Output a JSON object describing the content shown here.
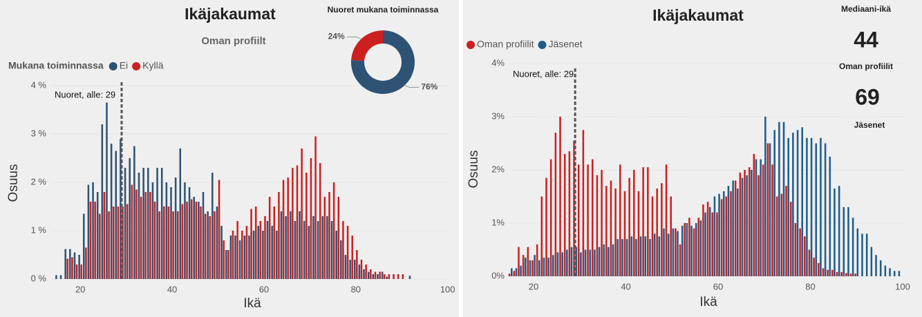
{
  "chart_data": [
    {
      "type": "histogram",
      "title": "Ikäjakaumat",
      "subtitle": "Oman profiilt",
      "legend_title": "Mukana toiminnassa",
      "xlabel": "Ikä",
      "ylabel": "Osuus",
      "xlim": [
        13.8,
        100.5
      ],
      "ylim": [
        0,
        4
      ],
      "xticks": [
        20,
        40,
        60,
        80,
        100
      ],
      "yticks": [
        {
          "value": 0,
          "label": "0 %"
        },
        {
          "value": 1,
          "label": "1 %"
        },
        {
          "value": 2,
          "label": "2 %"
        },
        {
          "value": 3,
          "label": "3 %"
        },
        {
          "value": 4,
          "label": "4 %"
        }
      ],
      "grid": true,
      "annotation": {
        "text": "Nuoret, alle: 29",
        "x": 29
      },
      "x": [
        15,
        16,
        17,
        18,
        19,
        20,
        21,
        22,
        23,
        24,
        25,
        26,
        27,
        28,
        29,
        30,
        31,
        32,
        33,
        34,
        35,
        36,
        37,
        38,
        39,
        40,
        41,
        42,
        43,
        44,
        45,
        46,
        47,
        48,
        49,
        50,
        51,
        52,
        53,
        54,
        55,
        56,
        57,
        58,
        59,
        60,
        61,
        62,
        63,
        64,
        65,
        66,
        67,
        68,
        69,
        70,
        71,
        72,
        73,
        74,
        75,
        76,
        77,
        78,
        79,
        80,
        81,
        82,
        83,
        84,
        85,
        86,
        87,
        88,
        89,
        90,
        91,
        92
      ],
      "series": [
        {
          "name": "Ei",
          "color": "#2e5274",
          "values": [
            0.08,
            0.08,
            0.62,
            0.62,
            0.55,
            0.5,
            1.35,
            1.95,
            2.0,
            1.8,
            3.2,
            3.65,
            2.8,
            2.65,
            2.9,
            2.3,
            2.5,
            2.75,
            2.2,
            2.3,
            2.3,
            2.0,
            2.3,
            2.3,
            2.0,
            1.9,
            2.1,
            2.7,
            2.0,
            1.9,
            1.7,
            1.6,
            1.8,
            1.4,
            2.2,
            1.5,
            1.1,
            0.6,
            0.9,
            0.9,
            0.8,
            0.9,
            0.9,
            1.0,
            1.1,
            1.0,
            1.2,
            1.1,
            1.0,
            1.4,
            1.3,
            1.4,
            1.2,
            1.4,
            1.2,
            1.1,
            1.3,
            1.2,
            1.3,
            1.3,
            1.2,
            1.0,
            0.8,
            0.5,
            0.4,
            0.4,
            0.3,
            0.2,
            0.15,
            0.1,
            0.1,
            0.15,
            0.05,
            0,
            0,
            0,
            0,
            0.07
          ]
        },
        {
          "name": "Kyllä",
          "color": "#cc1f1f",
          "values": [
            0,
            0,
            0.42,
            0.45,
            0.3,
            0.3,
            0.65,
            1.6,
            1.6,
            1.35,
            1.8,
            1.4,
            1.5,
            1.5,
            1.5,
            1.55,
            1.95,
            1.85,
            1.7,
            1.8,
            1.8,
            1.6,
            1.4,
            1.5,
            1.5,
            1.4,
            1.4,
            1.55,
            1.6,
            1.65,
            1.6,
            1.5,
            1.35,
            1.3,
            1.4,
            2.05,
            0.8,
            0.6,
            1.0,
            1.2,
            1.0,
            1.1,
            1.45,
            1.5,
            1.2,
            1.3,
            1.7,
            1.5,
            1.8,
            2.05,
            2.1,
            2.3,
            2.35,
            2.7,
            2.2,
            2.5,
            2.95,
            2.4,
            1.7,
            1.8,
            2.0,
            1.7,
            1.2,
            1.1,
            0.9,
            0.6,
            0.4,
            0.3,
            0.2,
            0.15,
            0.15,
            0.1,
            0.1,
            0.1,
            0.1,
            0.1,
            0,
            0
          ]
        }
      ]
    },
    {
      "type": "pie",
      "title": "Nuoret mukana toiminnassa",
      "values": [
        24,
        76
      ],
      "value_labels": [
        "24%",
        "76%"
      ],
      "colors": [
        "#cc1f1f",
        "#2e5274"
      ]
    },
    {
      "type": "histogram",
      "title": "Ikäjakaumat",
      "xlabel": "Ikä",
      "ylabel": "Osuus",
      "xlim": [
        14.9,
        100.6
      ],
      "ylim": [
        0,
        4
      ],
      "xticks": [
        20,
        40,
        60,
        80,
        100
      ],
      "yticks": [
        {
          "value": 0,
          "label": "0%"
        },
        {
          "value": 1,
          "label": "1%"
        },
        {
          "value": 2,
          "label": "2%"
        },
        {
          "value": 3,
          "label": "3%"
        },
        {
          "value": 4,
          "label": "4%"
        }
      ],
      "grid": true,
      "annotation": {
        "text": "Nuoret, alle: 29",
        "x": 29
      },
      "x": [
        15,
        16,
        17,
        18,
        19,
        20,
        21,
        22,
        23,
        24,
        25,
        26,
        27,
        28,
        29,
        30,
        31,
        32,
        33,
        34,
        35,
        36,
        37,
        38,
        39,
        40,
        41,
        42,
        43,
        44,
        45,
        46,
        47,
        48,
        49,
        50,
        51,
        52,
        53,
        54,
        55,
        56,
        57,
        58,
        59,
        60,
        61,
        62,
        63,
        64,
        65,
        66,
        67,
        68,
        69,
        70,
        71,
        72,
        73,
        74,
        75,
        76,
        77,
        78,
        79,
        80,
        81,
        82,
        83,
        84,
        85,
        86,
        87,
        88,
        89,
        90,
        91,
        92,
        93,
        94,
        95,
        96,
        97,
        98,
        99
      ],
      "series": [
        {
          "name": "Oman profiilit",
          "color": "#cc1f1f",
          "values": [
            0.05,
            0.1,
            0.55,
            0.4,
            0.55,
            0.3,
            0.6,
            1.5,
            1.85,
            2.2,
            2.7,
            3.0,
            2.3,
            2.35,
            2.55,
            2.1,
            2.75,
            2.1,
            2.2,
            1.9,
            2.0,
            1.7,
            1.8,
            1.65,
            2.1,
            1.6,
            1.85,
            2.0,
            1.6,
            2.05,
            2.05,
            1.5,
            1.65,
            1.75,
            2.1,
            1.5,
            0.9,
            0.6,
            1.0,
            1.1,
            0.9,
            1.1,
            1.35,
            1.4,
            1.2,
            1.2,
            1.45,
            1.5,
            1.6,
            1.8,
            1.95,
            2.0,
            2.05,
            2.3,
            1.9,
            2.1,
            2.5,
            2.1,
            1.5,
            1.55,
            1.7,
            1.4,
            1.0,
            0.9,
            0.75,
            0.5,
            0.35,
            0.25,
            0.15,
            0.12,
            0.12,
            0.08,
            0.08,
            0.06,
            0.05,
            0.05,
            0,
            0,
            0,
            0,
            0,
            0,
            0,
            0,
            0
          ]
        },
        {
          "name": "Jäsenet",
          "color": "#1f5c8b",
          "values": [
            0.15,
            0.15,
            0.2,
            0.35,
            0.3,
            0.4,
            0.3,
            0.35,
            0.35,
            0.4,
            0.45,
            0.45,
            0.5,
            0.55,
            0.55,
            0.45,
            0.5,
            0.5,
            0.5,
            0.55,
            0.6,
            0.55,
            0.6,
            0.7,
            0.7,
            0.7,
            0.75,
            0.7,
            0.75,
            0.75,
            0.7,
            0.8,
            0.75,
            0.9,
            0.8,
            0.9,
            0.85,
            0.95,
            1.0,
            0.95,
            1.0,
            1.05,
            1.2,
            1.3,
            1.5,
            1.55,
            1.6,
            1.7,
            1.8,
            1.65,
            1.85,
            1.9,
            2.0,
            2.2,
            2.2,
            3.0,
            2.5,
            2.75,
            2.9,
            2.9,
            2.6,
            2.7,
            2.75,
            2.8,
            2.6,
            2.6,
            2.5,
            2.6,
            2.5,
            2.25,
            1.65,
            1.7,
            1.3,
            1.3,
            1.1,
            0.9,
            0.8,
            0.8,
            0.55,
            0.4,
            0.3,
            0.2,
            0.15,
            0.1,
            0.1
          ]
        }
      ]
    }
  ],
  "kpis": {
    "title": "Mediaani-ikä",
    "items": [
      {
        "value": 44,
        "label": "Oman profiilit"
      },
      {
        "value": 69,
        "label": "Jäsenet"
      }
    ]
  }
}
